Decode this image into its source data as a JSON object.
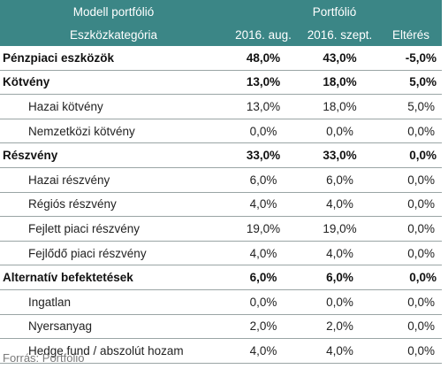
{
  "header": {
    "row1": {
      "col1": "Modell portfólió",
      "group": "Portfólió"
    },
    "row2": {
      "col1": "Eszközkategória",
      "col2": "2016. aug.",
      "col3": "2016. szept.",
      "col4": "Eltérés"
    }
  },
  "rows": [
    {
      "label": "Pénzpiaci eszközök",
      "aug": "48,0%",
      "sept": "43,0%",
      "diff": "-5,0%"
    },
    {
      "label": "Kötvény",
      "aug": "13,0%",
      "sept": "18,0%",
      "diff": "5,0%"
    },
    {
      "label": "Hazai kötvény",
      "aug": "13,0%",
      "sept": "18,0%",
      "diff": "5,0%"
    },
    {
      "label": "Nemzetközi kötvény",
      "aug": "0,0%",
      "sept": "0,0%",
      "diff": "0,0%"
    },
    {
      "label": "Részvény",
      "aug": "33,0%",
      "sept": "33,0%",
      "diff": "0,0%"
    },
    {
      "label": "Hazai részvény",
      "aug": "6,0%",
      "sept": "6,0%",
      "diff": "0,0%"
    },
    {
      "label": "Régiós részvény",
      "aug": "4,0%",
      "sept": "4,0%",
      "diff": "0,0%"
    },
    {
      "label": "Fejlett piaci részvény",
      "aug": "19,0%",
      "sept": "19,0%",
      "diff": "0,0%"
    },
    {
      "label": "Fejlődő piaci részvény",
      "aug": "4,0%",
      "sept": "4,0%",
      "diff": "0,0%"
    },
    {
      "label": "Alternatív befektetések",
      "aug": "6,0%",
      "sept": "6,0%",
      "diff": "0,0%"
    },
    {
      "label": "Ingatlan",
      "aug": "0,0%",
      "sept": "0,0%",
      "diff": "0,0%"
    },
    {
      "label": "Nyersanyag",
      "aug": "2,0%",
      "sept": "2,0%",
      "diff": "0,0%"
    },
    {
      "label": "Hedge fund / abszolút hozam",
      "aug": "4,0%",
      "sept": "4,0%",
      "diff": "0,0%"
    }
  ],
  "source": "Forrás: Portfolio",
  "colors": {
    "header_bg": "#3b8686",
    "header_text": "#ffffff",
    "row_border": "#9aa5a5",
    "source_text": "#7a7a7a"
  }
}
